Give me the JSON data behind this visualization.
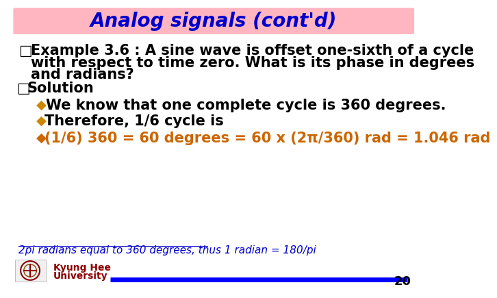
{
  "title": "Analog signals (cont'd)",
  "title_color": "#0000CC",
  "title_bg_color": "#FFB6C1",
  "bg_color": "#FFFFFF",
  "bullet_color_dark": "#CC8800",
  "text_color_black": "#000000",
  "text_color_orange": "#CC6600",
  "text_color_link": "#0000CC",
  "line_color": "#0000FF",
  "page_num": "20",
  "university_text_line1": "Kyung Hee",
  "university_text_line2": "University",
  "university_color": "#8B0000",
  "example_bullet": "□",
  "example_line1": "Example 3.6 : A sine wave is offset one-sixth of a cycle",
  "example_line2": "with respect to time zero. What is its phase in degrees",
  "example_line3": "and radians?",
  "solution_bullet": "□",
  "solution_label": "Solution",
  "bullet1": "◆",
  "bullet1_text": "We know that one complete cycle is 360 degrees.",
  "bullet2": "◆",
  "bullet2_text": "Therefore, 1/6 cycle is",
  "bullet3": "◆",
  "bullet3_text": "(1/6) 360 = 60 degrees = 60 x (2π/360) rad = 1.046 rad",
  "footnote": "2pi radians equal to 360 degrees, thus 1 radian = 180/pi"
}
